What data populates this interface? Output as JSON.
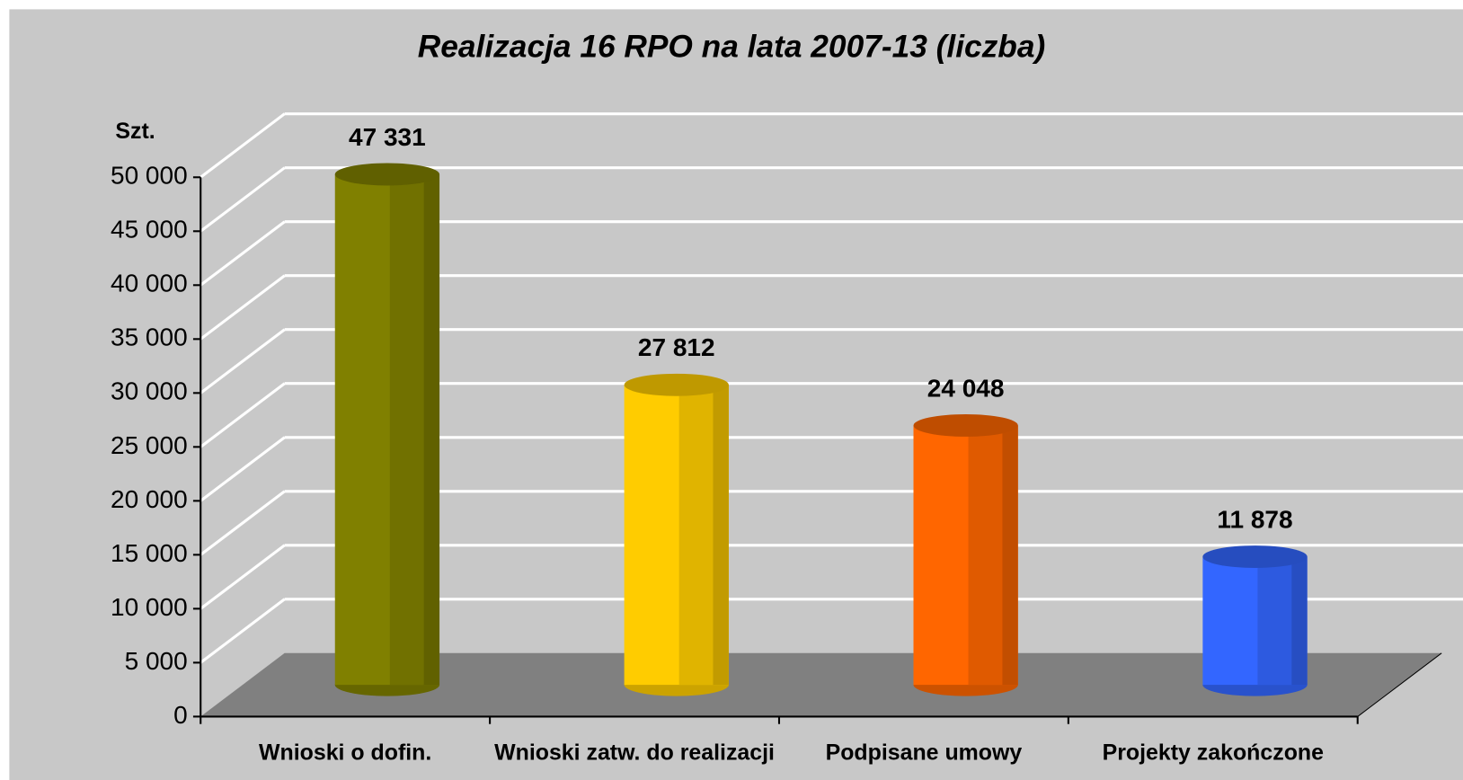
{
  "chart_data": {
    "type": "bar3d",
    "title": "Realizacja 16 RPO na lata 2007-13 (liczba)",
    "y_label": "Szt.",
    "categories": [
      "Wnioski o dofin.",
      "Wnioski zatw. do realizacji",
      "Podpisane umowy",
      "Projekty zakończone"
    ],
    "values": [
      47331,
      27812,
      24048,
      11878
    ],
    "value_labels": [
      "47 331",
      "27 812",
      "24 048",
      "11 878"
    ],
    "colors": [
      "#808000",
      "#ffcc00",
      "#ff6600",
      "#3366ff"
    ],
    "ylim": [
      0,
      50000
    ],
    "yticks": [
      0,
      {
        "value": 5000,
        "label": "5 000"
      },
      {
        "value": 10000,
        "label": "10 000"
      },
      {
        "value": 15000,
        "label": "15 000"
      },
      {
        "value": 20000,
        "label": "20 000"
      },
      {
        "value": 25000,
        "label": "25 000"
      },
      {
        "value": 30000,
        "label": "30 000"
      },
      {
        "value": 35000,
        "label": "35 000"
      },
      {
        "value": 40000,
        "label": "40 000"
      },
      {
        "value": 45000,
        "label": "45 000"
      },
      {
        "value": 50000,
        "label": "50 000"
      }
    ],
    "grid": true
  }
}
